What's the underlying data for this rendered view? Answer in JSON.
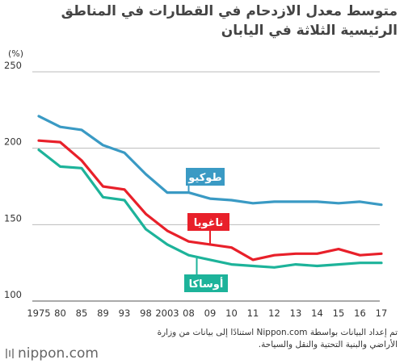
{
  "title": "متوسط معدل الازدحام في القطارات في المناطق الرئيسية الثلاثة في اليابان",
  "source": "تم إعداد البيانات بواسطة Nippon.com استنادًا إلى بيانات من وزارة الأراضي والبنية التحتية والنقل والسياحة.",
  "logo": "nippon.com",
  "colors": {
    "tokyo": "#3a9ac4",
    "nagoya": "#e8202a",
    "osaka": "#1db39a"
  },
  "chart_data": {
    "type": "line",
    "ylabel": "(%)",
    "ylim": [
      100,
      250
    ],
    "yticks": [
      100,
      150,
      200,
      250
    ],
    "grid": true,
    "categories": [
      "1975",
      "80",
      "85",
      "89",
      "93",
      "98",
      "2003",
      "08",
      "09",
      "10",
      "11",
      "12",
      "13",
      "14",
      "15",
      "16",
      "17"
    ],
    "series": [
      {
        "name": "طوكيو",
        "color": "#3a9ac4",
        "values": [
          221,
          214,
          212,
          202,
          197,
          183,
          171,
          171,
          167,
          166,
          164,
          165,
          165,
          165,
          164,
          165,
          163
        ]
      },
      {
        "name": "ناغويا",
        "color": "#e8202a",
        "values": [
          205,
          204,
          192,
          175,
          173,
          157,
          146,
          139,
          137,
          135,
          127,
          130,
          131,
          131,
          134,
          130,
          131
        ]
      },
      {
        "name": "أوساكا",
        "color": "#1db39a",
        "values": [
          199,
          188,
          187,
          168,
          166,
          147,
          137,
          130,
          127,
          124,
          123,
          122,
          124,
          123,
          124,
          125,
          125
        ]
      }
    ]
  }
}
